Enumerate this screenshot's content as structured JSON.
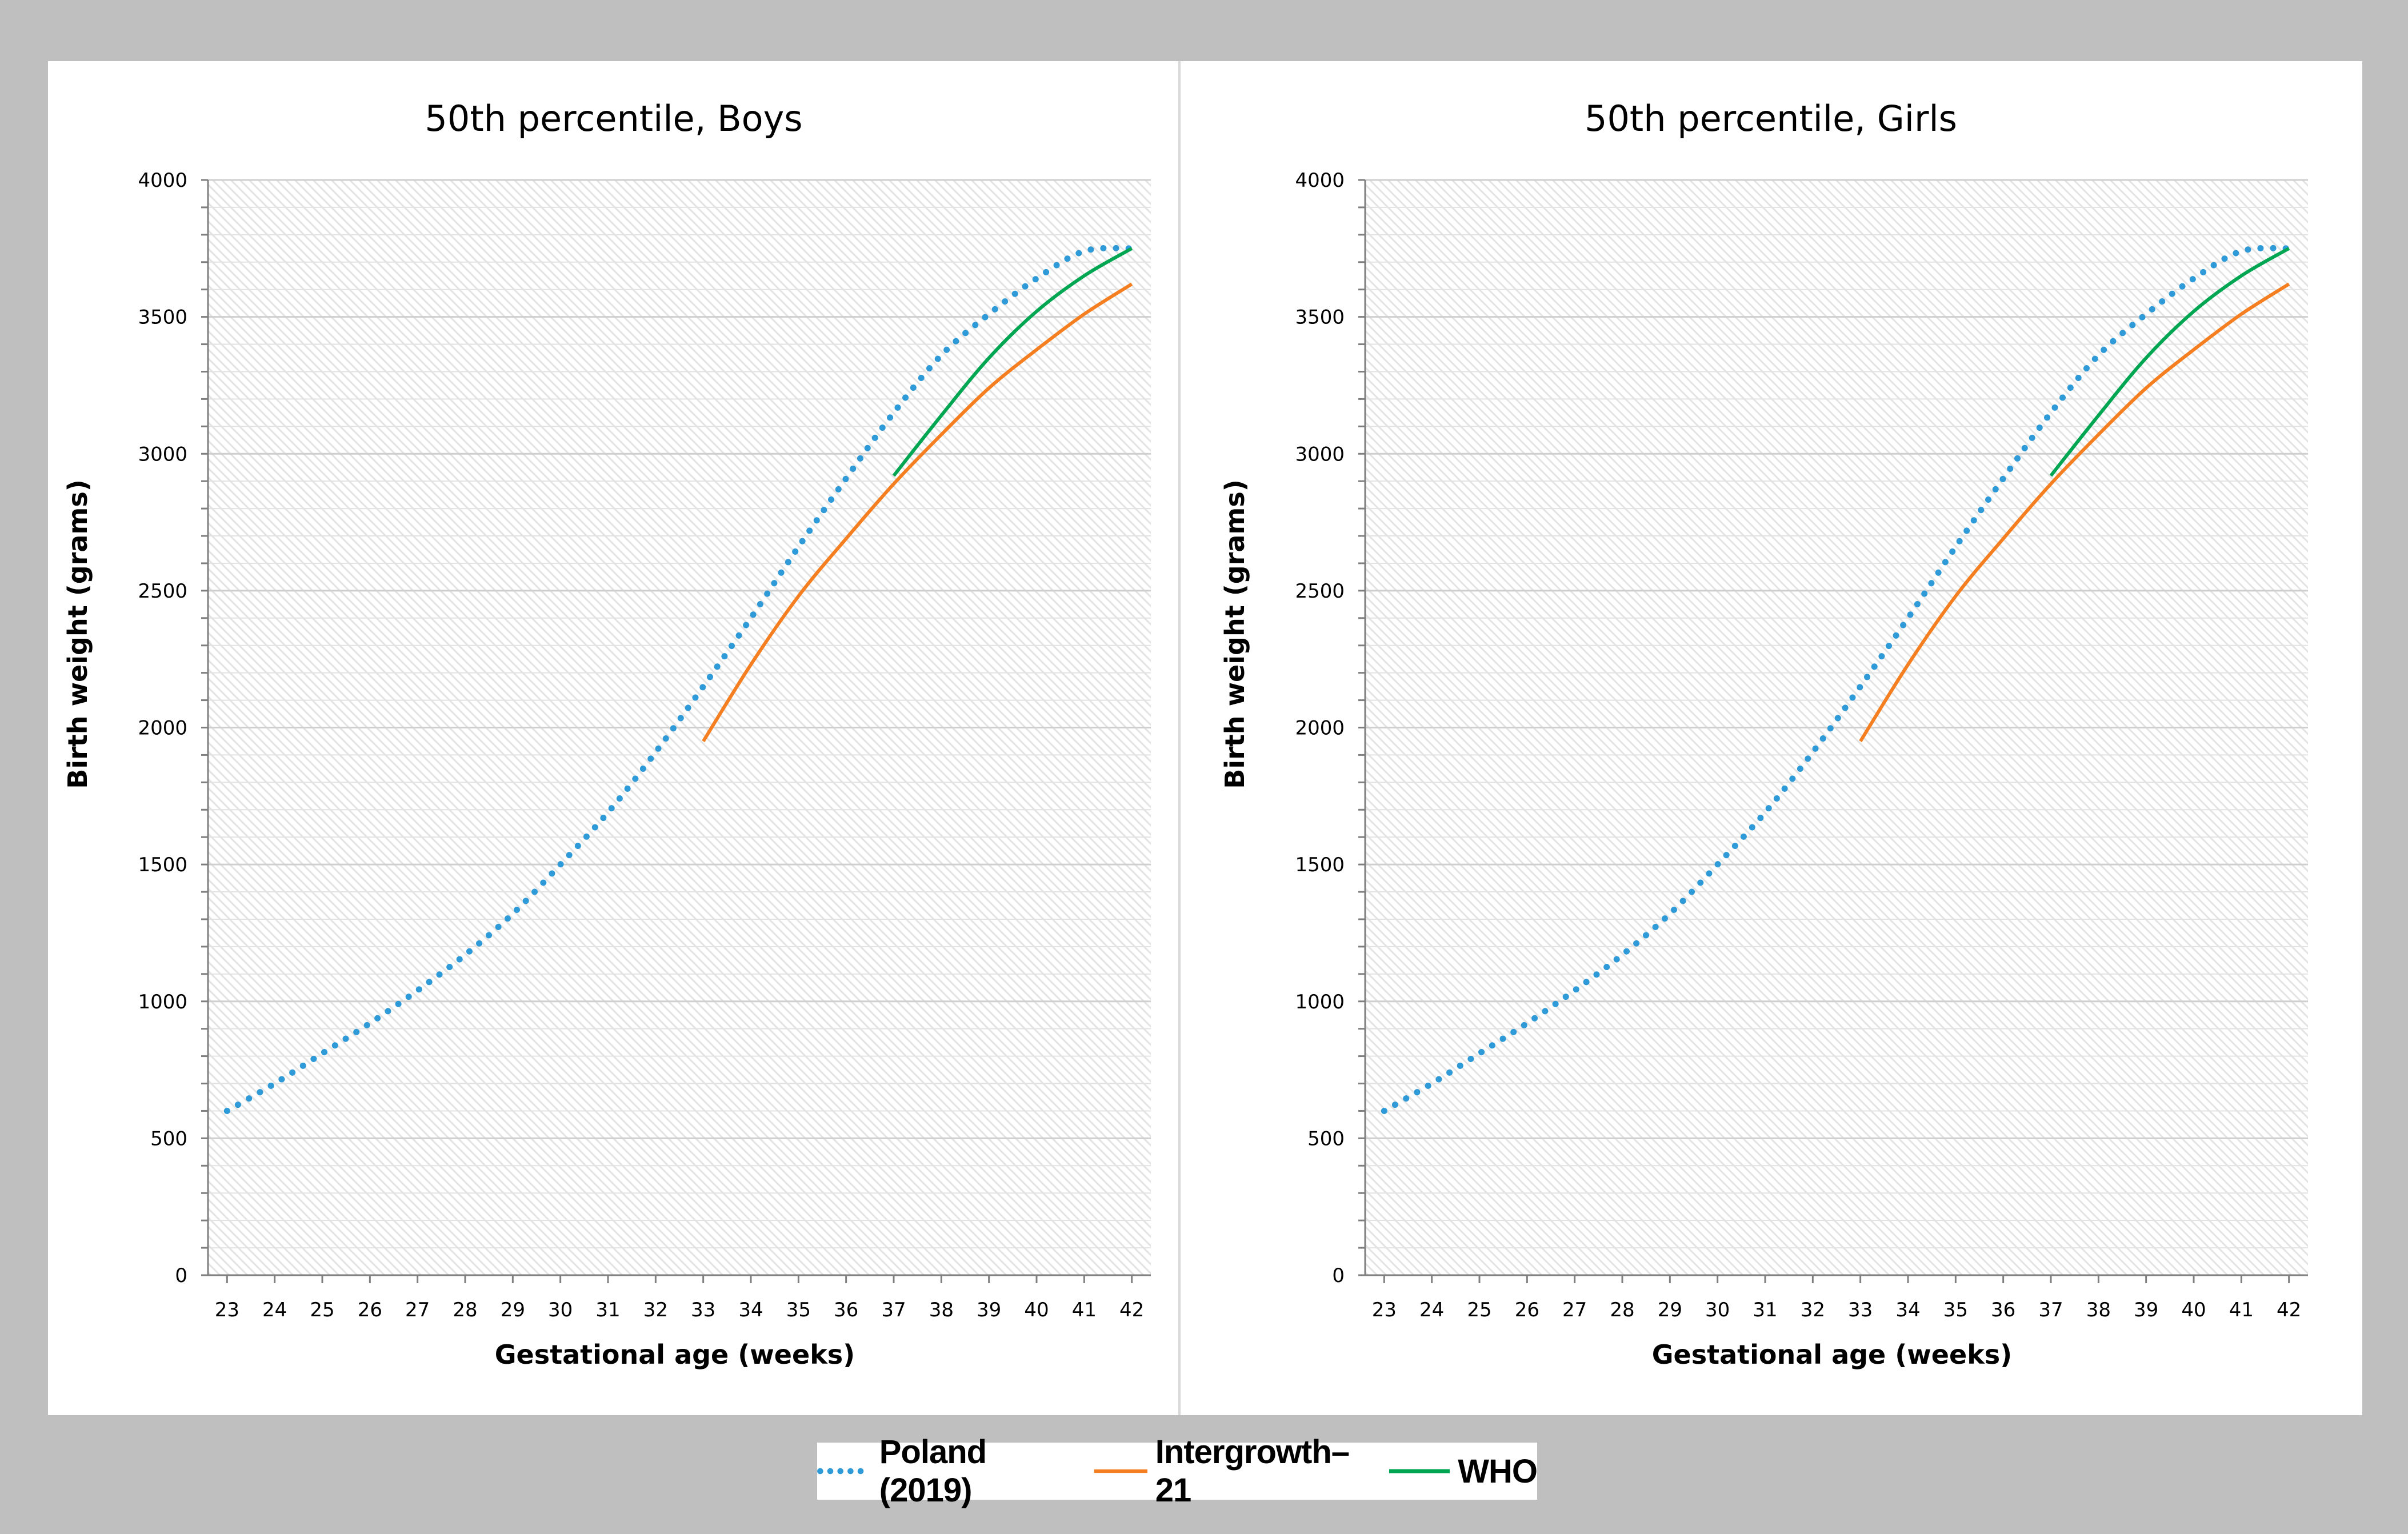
{
  "legend": {
    "items": [
      {
        "label": "Poland (2019)",
        "color": "#2e9ad8",
        "style": "dotted"
      },
      {
        "label": "Intergrowth–21",
        "color": "#f57f20",
        "style": "solid"
      },
      {
        "label": "WHO",
        "color": "#00a651",
        "style": "solid"
      }
    ]
  },
  "chart_data": [
    {
      "type": "line",
      "title": "50th percentile, Boys",
      "xlabel": "Gestational age (weeks)",
      "ylabel": "Birth weight (grams)",
      "xlim": [
        22.6,
        42.4
      ],
      "ylim": [
        0,
        4000
      ],
      "x_ticks": [
        23,
        24,
        25,
        26,
        27,
        28,
        29,
        30,
        31,
        32,
        33,
        34,
        35,
        36,
        37,
        38,
        39,
        40,
        41,
        42
      ],
      "y_ticks": [
        0,
        500,
        1000,
        1500,
        2000,
        2500,
        3000,
        3500,
        4000
      ],
      "grid": true,
      "series": [
        {
          "name": "Poland (2019)",
          "color": "#2e9ad8",
          "style": "dotted",
          "x": [
            23,
            24,
            25,
            26,
            27,
            28,
            29,
            30,
            31,
            32,
            33,
            34,
            35,
            36,
            37,
            38,
            39,
            40,
            41,
            42
          ],
          "values": [
            600,
            700,
            810,
            920,
            1040,
            1170,
            1320,
            1500,
            1690,
            1910,
            2150,
            2400,
            2660,
            2910,
            3150,
            3360,
            3510,
            3640,
            3740,
            3750
          ]
        },
        {
          "name": "Intergrowth–21",
          "color": "#f57f20",
          "style": "solid",
          "x": [
            33,
            34,
            35,
            36,
            37,
            38,
            39,
            40,
            41,
            42
          ],
          "values": [
            1950,
            2230,
            2480,
            2690,
            2890,
            3070,
            3240,
            3380,
            3510,
            3620
          ]
        },
        {
          "name": "WHO",
          "color": "#00a651",
          "style": "solid",
          "x": [
            37,
            38,
            39,
            40,
            41,
            42
          ],
          "values": [
            2920,
            3140,
            3350,
            3520,
            3650,
            3750
          ]
        }
      ]
    },
    {
      "type": "line",
      "title": "50th percentile, Girls",
      "xlabel": "Gestational age (weeks)",
      "ylabel": "Birth weight (grams)",
      "xlim": [
        22.6,
        42.4
      ],
      "ylim": [
        0,
        4000
      ],
      "x_ticks": [
        23,
        24,
        25,
        26,
        27,
        28,
        29,
        30,
        31,
        32,
        33,
        34,
        35,
        36,
        37,
        38,
        39,
        40,
        41,
        42
      ],
      "y_ticks": [
        0,
        500,
        1000,
        1500,
        2000,
        2500,
        3000,
        3500,
        4000
      ],
      "grid": true,
      "series": [
        {
          "name": "Poland (2019)",
          "color": "#2e9ad8",
          "style": "dotted",
          "x": [
            23,
            24,
            25,
            26,
            27,
            28,
            29,
            30,
            31,
            32,
            33,
            34,
            35,
            36,
            37,
            38,
            39,
            40,
            41,
            42
          ],
          "values": [
            600,
            700,
            810,
            920,
            1040,
            1170,
            1320,
            1500,
            1690,
            1910,
            2150,
            2400,
            2660,
            2910,
            3150,
            3360,
            3510,
            3640,
            3740,
            3750
          ]
        },
        {
          "name": "Intergrowth–21",
          "color": "#f57f20",
          "style": "solid",
          "x": [
            33,
            34,
            35,
            36,
            37,
            38,
            39,
            40,
            41,
            42
          ],
          "values": [
            1950,
            2230,
            2480,
            2690,
            2890,
            3070,
            3240,
            3380,
            3510,
            3620
          ]
        },
        {
          "name": "WHO",
          "color": "#00a651",
          "style": "solid",
          "x": [
            37,
            38,
            39,
            40,
            41,
            42
          ],
          "values": [
            2920,
            3140,
            3350,
            3520,
            3650,
            3750
          ]
        }
      ]
    }
  ]
}
